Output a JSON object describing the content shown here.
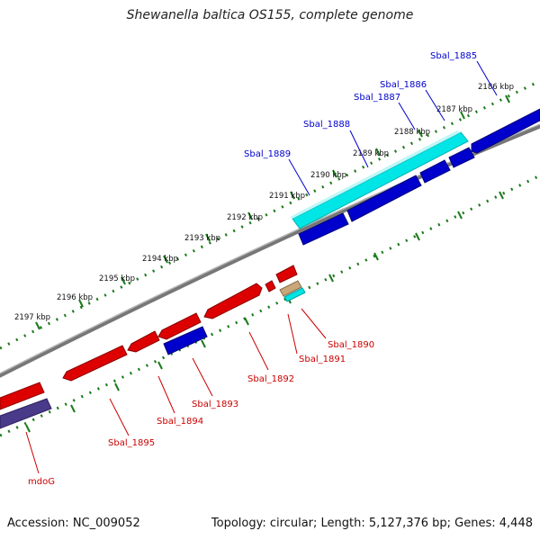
{
  "title": "Shewanella baltica OS155, complete genome",
  "accession": "Accession: NC_009052",
  "topology": "Topology: circular; Length: 5,127,376 bp; Genes: 4,448",
  "colors": {
    "backbone": "#777777",
    "tick": "#1a7a1a",
    "blue_gene": "#0000cc",
    "cyan_gene": "#00e5e5",
    "red_gene": "#dd0000",
    "tan_gene": "#c8a87a",
    "slate_gene": "#4a3a8a",
    "blue_label": "#0000cc",
    "red_label": "#cc0000"
  },
  "kbp_labels": [
    "2186 kbp",
    "2187 kbp",
    "2188 kbp",
    "2189 kbp",
    "2190 kbp",
    "2191 kbp",
    "2192 kbp",
    "2193 kbp",
    "2194 kbp",
    "2195 kbp",
    "2196 kbp",
    "2197 kbp"
  ],
  "forward_labels": [
    "Sbal_1885",
    "Sbal_1886",
    "Sbal_1887",
    "Sbal_1888",
    "Sbal_1889"
  ],
  "reverse_labels": [
    "Sbal_1890",
    "Sbal_1891",
    "Sbal_1892",
    "Sbal_1893",
    "Sbal_1894",
    "Sbal_1895",
    "mdoG"
  ]
}
